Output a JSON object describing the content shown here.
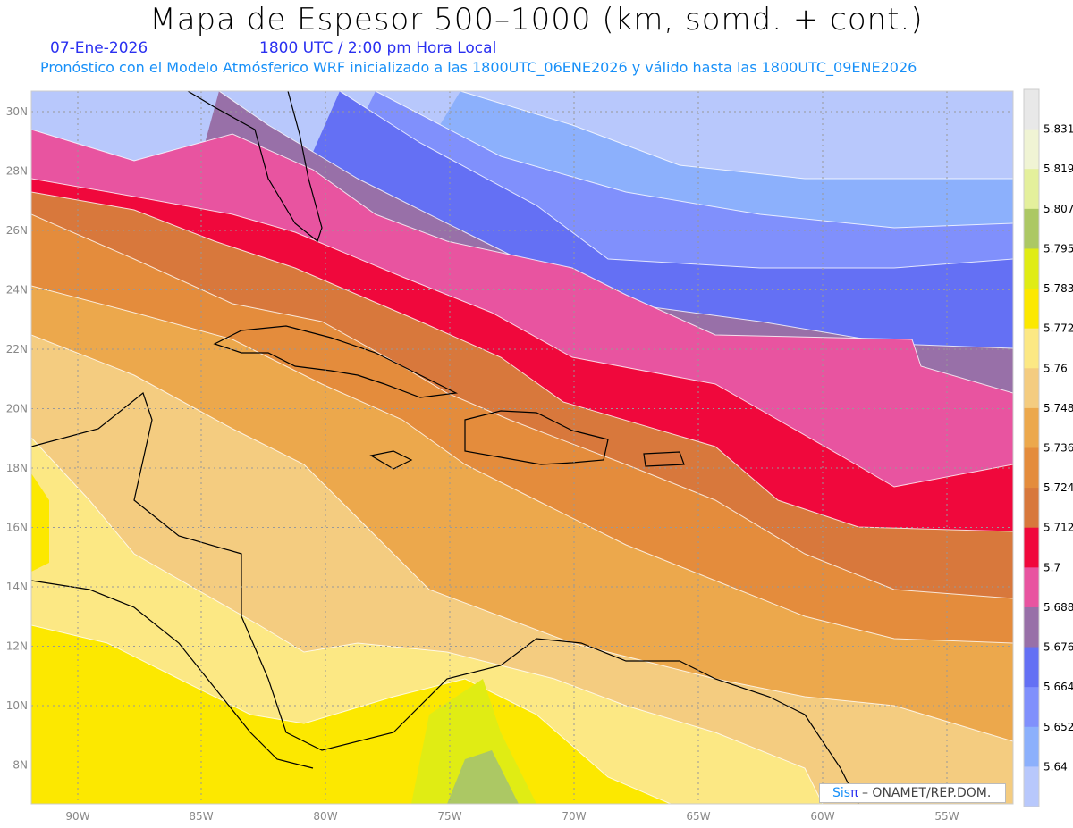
{
  "header": {
    "title": "Mapa de Espesor 500–1000 (km, somd. + cont.)",
    "date": "07-Ene-2026",
    "time": "1800 UTC / 2:00 pm Hora Local",
    "subtitle": "Pronóstico con el Modelo Atmósferico WRF inicializado a las 1800UTC_06ENE2026 y válido hasta las  1800UTC_09ENE2026"
  },
  "axes": {
    "lon_ticks": [
      "90W",
      "85W",
      "80W",
      "75W",
      "70W",
      "65W",
      "60W",
      "55W"
    ],
    "lat_ticks": [
      "30N",
      "28N",
      "26N",
      "24N",
      "22N",
      "20N",
      "18N",
      "16N",
      "14N",
      "12N",
      "10N",
      "8N"
    ]
  },
  "colorbar": {
    "labels": [
      "5.831",
      "5.819",
      "5.807",
      "5.795",
      "5.783",
      "5.772",
      "5.76",
      "5.748",
      "5.736",
      "5.724",
      "5.712",
      "5.7",
      "5.688",
      "5.676",
      "5.664",
      "5.652",
      "5.64"
    ],
    "colors": [
      "#e8e8e8",
      "#f0f4d4",
      "#e4f09c",
      "#acc864",
      "#e0ec14",
      "#fce800",
      "#fce884",
      "#f4cc80",
      "#eca84c",
      "#e48c3c",
      "#d8783c",
      "#f0083c",
      "#e854a0",
      "#9870a8",
      "#6470f4",
      "#8090fc",
      "#8cb0fc",
      "#b8c8fc"
    ]
  },
  "logo": {
    "sis": "Sis",
    "pi": "π",
    "org": "–  ONAMET/REP.DOM."
  }
}
